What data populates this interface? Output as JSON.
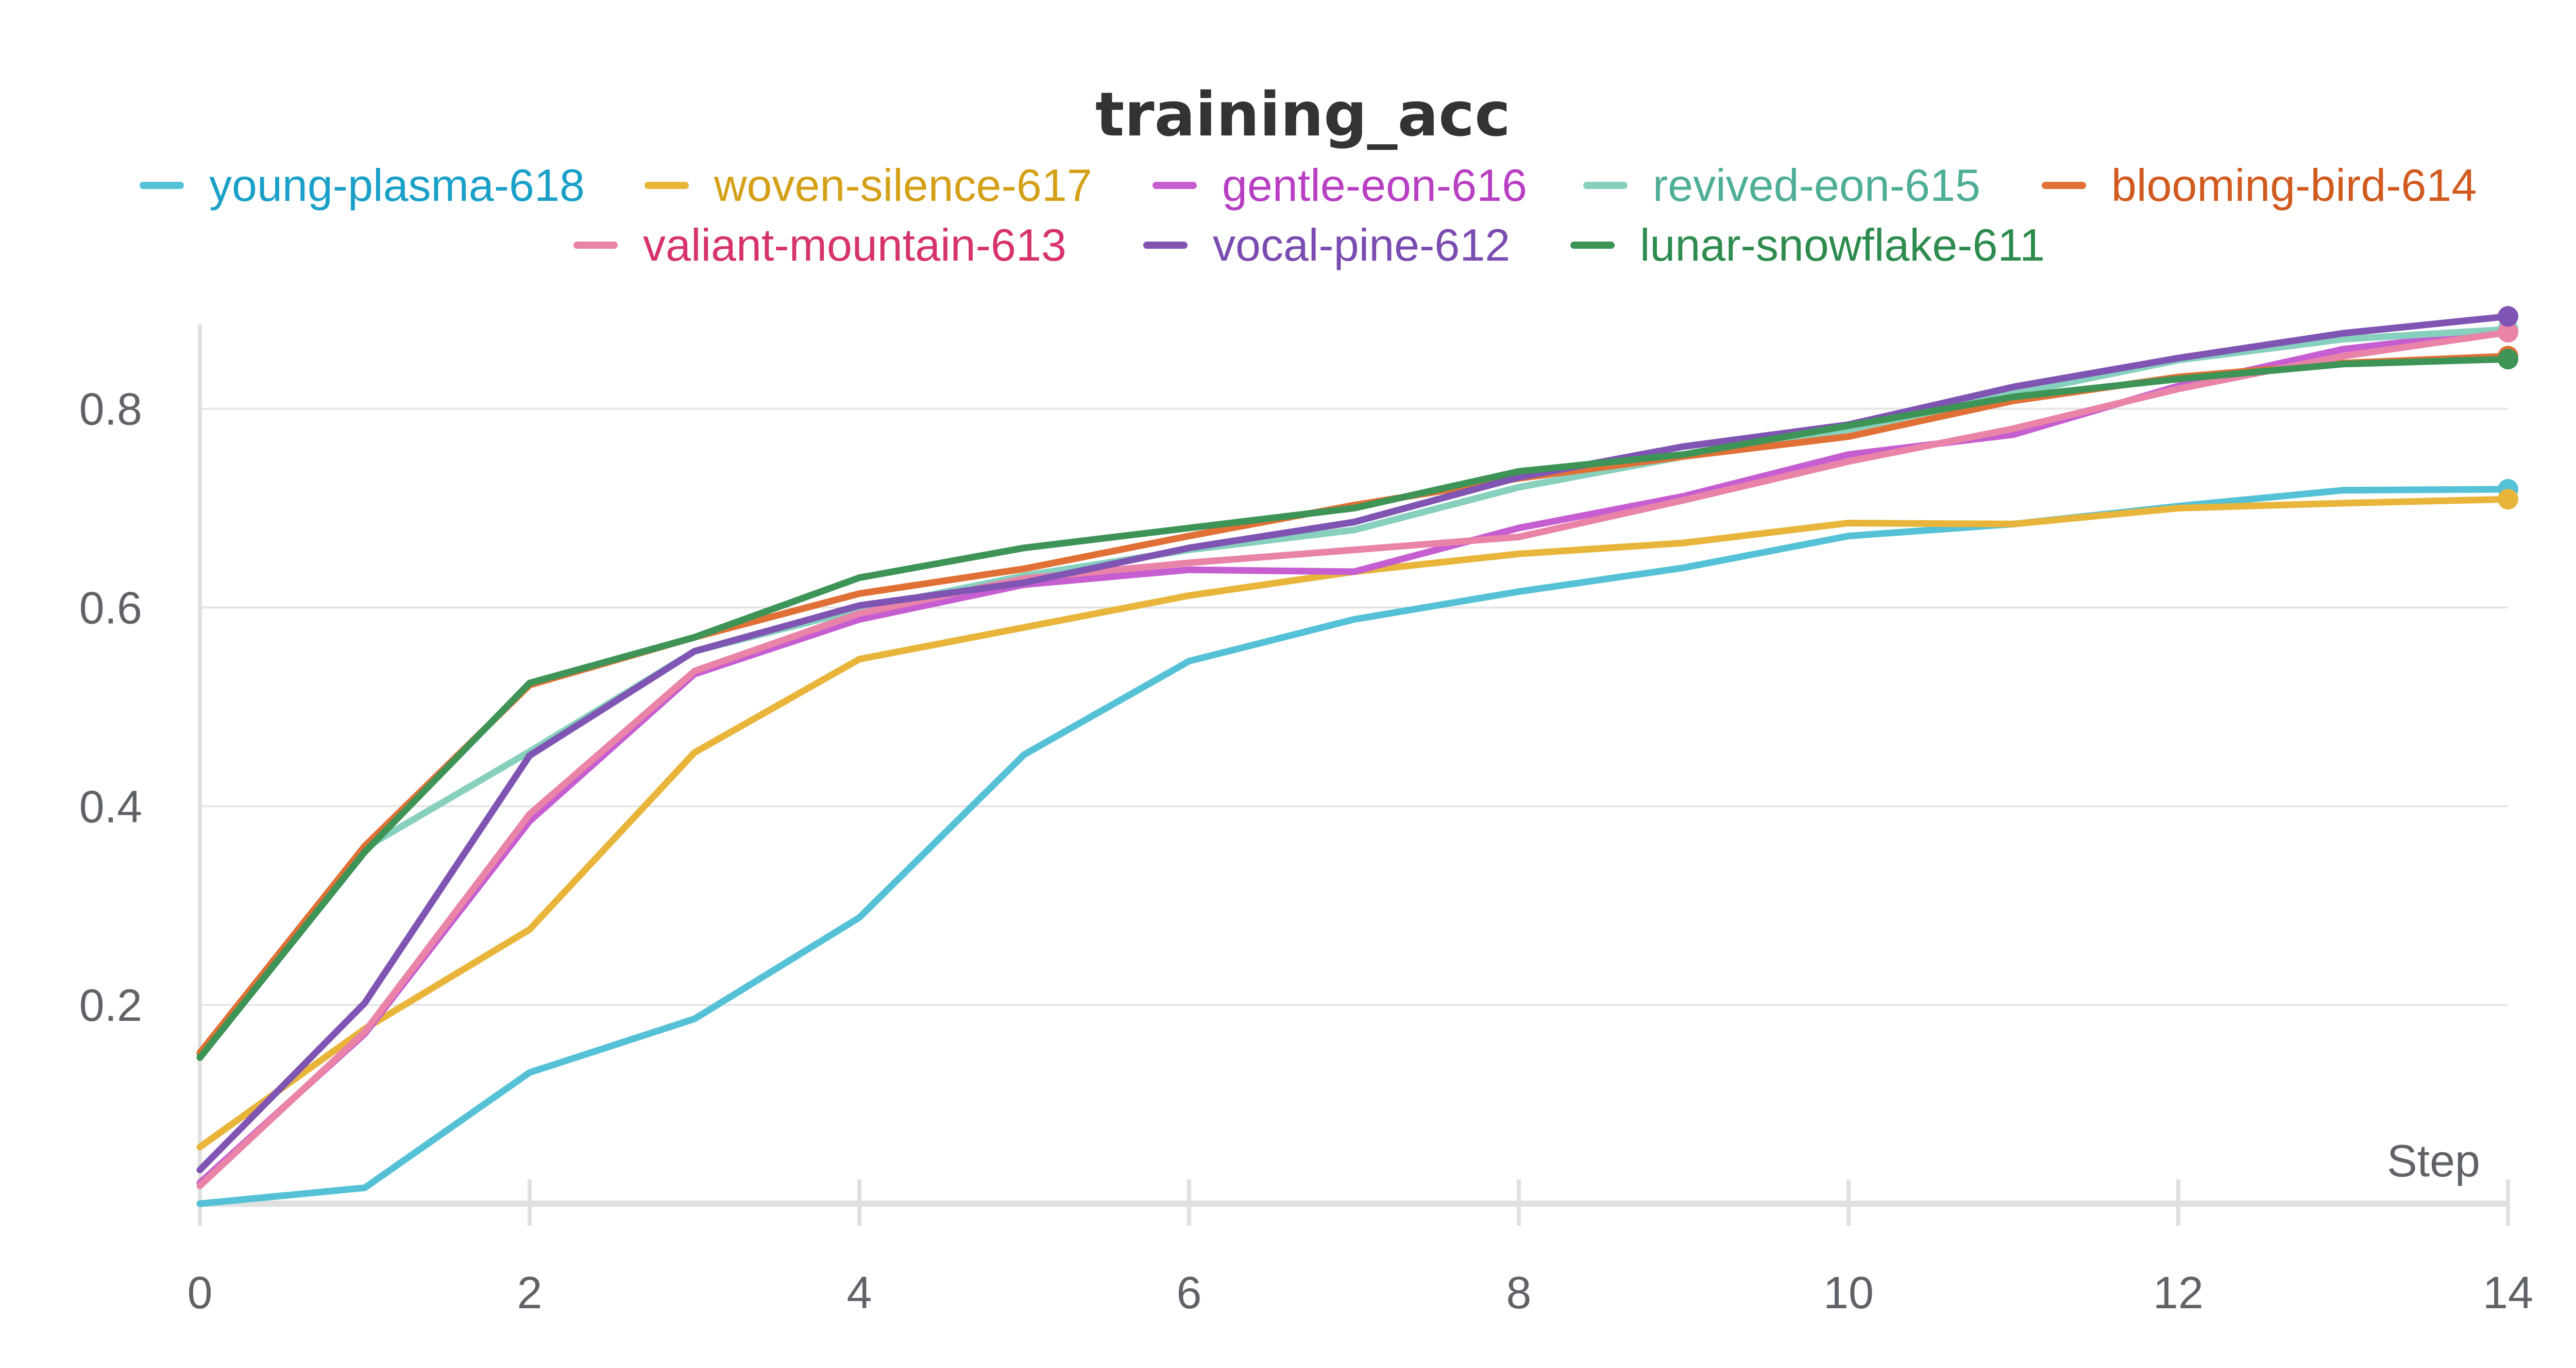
{
  "chart_data": {
    "type": "line",
    "title": "training_acc",
    "xlabel": "Step",
    "ylabel": "",
    "xlim": [
      0,
      14
    ],
    "ylim": [
      0,
      0.89
    ],
    "x_ticks": [
      "0",
      "2",
      "4",
      "6",
      "8",
      "10",
      "12",
      "14"
    ],
    "y_ticks": [
      "0.2",
      "0.4",
      "0.6",
      "0.8"
    ],
    "x": [
      0,
      1,
      2,
      3,
      4,
      5,
      6,
      7,
      8,
      9,
      10,
      11,
      12,
      13,
      14
    ],
    "grid": true,
    "legend_position": "top",
    "series": [
      {
        "name": "young-plasma-618",
        "color": "#55c1d6",
        "text_color": "#1aa0c8",
        "values": [
          0.0,
          0.016,
          0.132,
          0.186,
          0.288,
          0.452,
          0.546,
          0.588,
          0.616,
          0.64,
          0.672,
          0.684,
          0.702,
          0.718,
          0.719
        ]
      },
      {
        "name": "woven-silence-617",
        "color": "#e8b53a",
        "text_color": "#d4a017",
        "values": [
          0.057,
          0.176,
          0.276,
          0.454,
          0.548,
          0.58,
          0.612,
          0.636,
          0.654,
          0.665,
          0.685,
          0.684,
          0.7,
          0.705,
          0.709
        ]
      },
      {
        "name": "gentle-eon-616",
        "color": "#c65ed1",
        "text_color": "#b83fc2",
        "values": [
          0.021,
          0.171,
          0.385,
          0.533,
          0.588,
          0.623,
          0.638,
          0.636,
          0.68,
          0.712,
          0.754,
          0.774,
          0.823,
          0.86,
          0.879
        ]
      },
      {
        "name": "revived-eon-615",
        "color": "#86d0bd",
        "text_color": "#4fae97",
        "values": [
          0.15,
          0.358,
          0.455,
          0.556,
          0.598,
          0.632,
          0.658,
          0.678,
          0.721,
          0.752,
          0.779,
          0.815,
          0.849,
          0.87,
          0.88
        ]
      },
      {
        "name": "blooming-bird-614",
        "color": "#e07035",
        "text_color": "#d15a1f",
        "values": [
          0.152,
          0.36,
          0.522,
          0.57,
          0.614,
          0.639,
          0.672,
          0.703,
          0.73,
          0.752,
          0.772,
          0.808,
          0.832,
          0.846,
          0.853
        ]
      },
      {
        "name": "valiant-mountain-613",
        "color": "#e983a8",
        "text_color": "#d6336c",
        "values": [
          0.018,
          0.173,
          0.392,
          0.536,
          0.594,
          0.629,
          0.645,
          0.658,
          0.671,
          0.708,
          0.747,
          0.78,
          0.82,
          0.853,
          0.877
        ]
      },
      {
        "name": "vocal-pine-612",
        "color": "#7f54b3",
        "text_color": "#7a4bb0",
        "values": [
          0.034,
          0.202,
          0.451,
          0.556,
          0.602,
          0.625,
          0.66,
          0.686,
          0.731,
          0.762,
          0.784,
          0.822,
          0.851,
          0.876,
          0.893
        ]
      },
      {
        "name": "lunar-snowflake-611",
        "color": "#3d9456",
        "text_color": "#2e8b4e",
        "values": [
          0.147,
          0.354,
          0.524,
          0.57,
          0.63,
          0.66,
          0.68,
          0.7,
          0.737,
          0.754,
          0.783,
          0.812,
          0.83,
          0.845,
          0.85
        ]
      }
    ]
  }
}
